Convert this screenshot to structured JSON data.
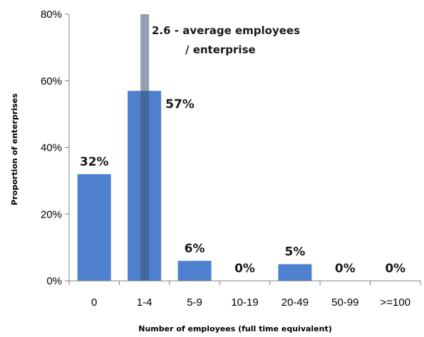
{
  "chart_data": {
    "type": "bar",
    "categories": [
      "0",
      "1-4",
      "5-9",
      "10-19",
      "20-49",
      "50-99",
      ">=100"
    ],
    "values": [
      32,
      57,
      6,
      0,
      5,
      0,
      0
    ],
    "data_labels": [
      "32%",
      "57%",
      "6%",
      "0%",
      "5%",
      "0%",
      "0%"
    ],
    "xlabel": "Number of employees (full time equivalent)",
    "ylabel": "Proportion of enterprises",
    "ylim": [
      0,
      80
    ],
    "yticks": [
      0,
      20,
      40,
      60,
      80
    ],
    "ytick_labels": [
      "0%",
      "20%",
      "40%",
      "60%",
      "80%"
    ],
    "grid": false,
    "bar_color": "#4f81d0",
    "annotation": {
      "value": 2.6,
      "lines": [
        "2.6 - average employees",
        "/ enterprise"
      ],
      "color": "#3a5070"
    }
  }
}
